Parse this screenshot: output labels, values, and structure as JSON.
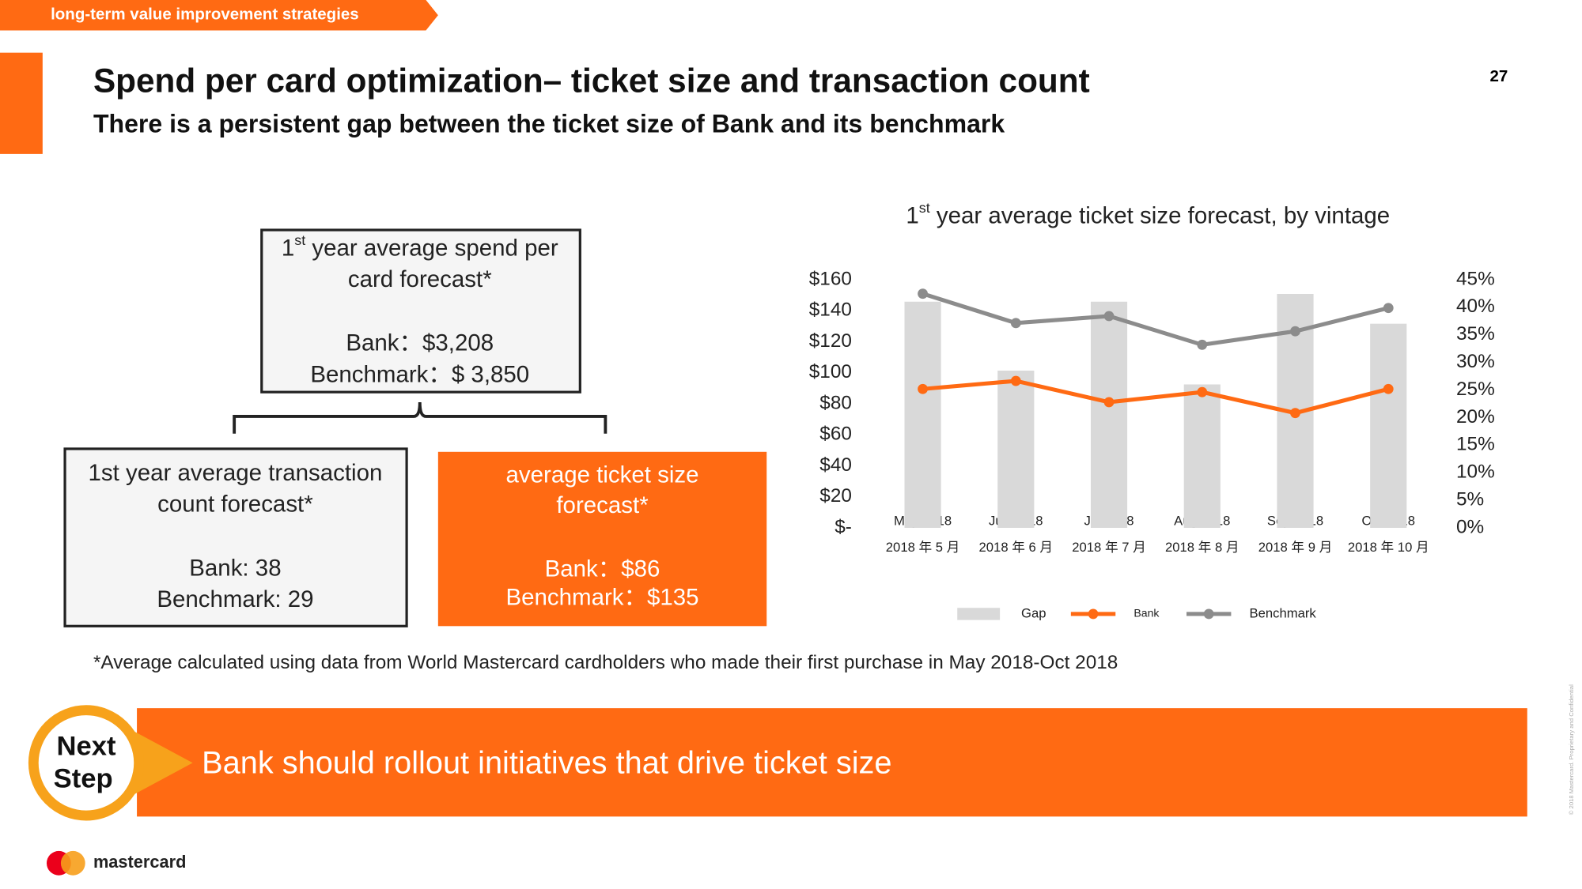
{
  "header": {
    "tag": "long-term value improvement strategies",
    "page_number": "27",
    "title": "Spend per card optimization– ticket size and transaction count",
    "subtitle": "There is a persistent gap between the ticket size of Bank and its benchmark"
  },
  "box_spend": {
    "lead": "1",
    "sup": "st",
    "line1": " year average spend per",
    "line2": "card forecast*",
    "bank": "Bank：$3,208",
    "benchmark": "Benchmark：$ 3,850"
  },
  "box_count": {
    "line1": "1st year average transaction",
    "line2": "count forecast*",
    "bank": "Bank: 38",
    "benchmark": "Benchmark: 29"
  },
  "box_ticket": {
    "line1": "average ticket size",
    "line2": "forecast*",
    "bank": "Bank：$86",
    "benchmark": "Benchmark：$135"
  },
  "footnote": "*Average calculated using data from World Mastercard cardholders who made their first purchase in May 2018-Oct 2018",
  "next_step": {
    "label1": "Next",
    "label2": "Step",
    "text": "Bank should rollout initiatives that drive ticket size"
  },
  "logo": "mastercard",
  "copyright": "© 2018 Mastercard. Proprietary and Confidential",
  "chart_data": {
    "type": "bar-line",
    "title_lead": "1",
    "title_sup": "st",
    "title": " year average ticket size forecast, by vintage",
    "categories": [
      "May 2018",
      "Jun 2018",
      "Jul 2018",
      "Aug 2018",
      "Sep 2018",
      "Oct 2018"
    ],
    "categories_local": [
      "2018 年 5 月",
      "2018 年 6 月",
      "2018 年 7 月",
      "2018 年 8 月",
      "2018 年 9 月",
      "2018 年 10 月"
    ],
    "ylim": [
      0,
      160
    ],
    "yticks": [
      {
        "value": 0,
        "label": "$-"
      },
      {
        "value": 20,
        "label": "$20"
      },
      {
        "value": 40,
        "label": "$40"
      },
      {
        "value": 60,
        "label": "$60"
      },
      {
        "value": 80,
        "label": "$80"
      },
      {
        "value": 100,
        "label": "$100"
      },
      {
        "value": 120,
        "label": "$120"
      },
      {
        "value": 140,
        "label": "$140"
      },
      {
        "value": 160,
        "label": "$160"
      }
    ],
    "y2lim": [
      0,
      45
    ],
    "y2ticks": [
      {
        "value": 0,
        "label": "0%"
      },
      {
        "value": 5,
        "label": "5%"
      },
      {
        "value": 10,
        "label": "10%"
      },
      {
        "value": 15,
        "label": "15%"
      },
      {
        "value": 20,
        "label": "20%"
      },
      {
        "value": 25,
        "label": "25%"
      },
      {
        "value": 30,
        "label": "30%"
      },
      {
        "value": 35,
        "label": "35%"
      },
      {
        "value": 40,
        "label": "40%"
      },
      {
        "value": 45,
        "label": "45%"
      }
    ],
    "grid": false,
    "series": [
      {
        "name": "Gap",
        "type": "bar",
        "axis": "y2",
        "color": "#d9d9d9",
        "values": [
          41,
          28.5,
          41,
          26,
          42.4,
          37
        ]
      },
      {
        "name": "Bank",
        "type": "line",
        "color": "#ff6a13",
        "values": [
          89.5,
          94.7,
          81,
          87.5,
          74,
          89.5
        ]
      },
      {
        "name": "Benchmark",
        "type": "line",
        "color": "#8c8c8c",
        "values": [
          150.9,
          132,
          136.5,
          118,
          126.7,
          141.7
        ]
      }
    ]
  }
}
